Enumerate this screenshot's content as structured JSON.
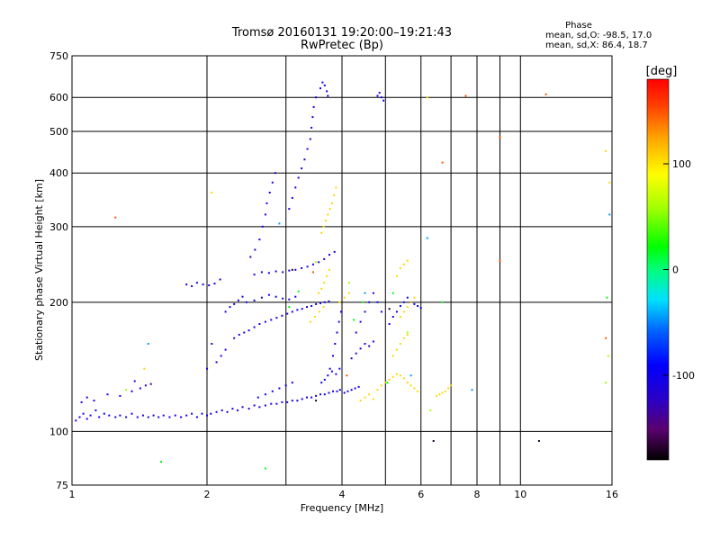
{
  "chart_data": {
    "type": "scatter",
    "title": "Tromsø 20160131 19:20:00–19:21:43",
    "subtitle": "RwPretec (Bp)",
    "xlabel": "Frequency [MHz]",
    "ylabel": "Stationary phase Virtual Height [km]",
    "x_scale": "log",
    "y_scale": "log",
    "xlim": [
      1,
      16
    ],
    "ylim": [
      75,
      750
    ],
    "grid": true,
    "x_ticks": [
      {
        "value": 1,
        "label": "1"
      },
      {
        "value": 2,
        "label": "2"
      },
      {
        "value": 4,
        "label": "4"
      },
      {
        "value": 6,
        "label": "6"
      },
      {
        "value": 8,
        "label": "8"
      },
      {
        "value": 10,
        "label": "10"
      },
      {
        "value": 16,
        "label": "16"
      }
    ],
    "x_minor": [
      3,
      5,
      7,
      9
    ],
    "y_ticks": [
      {
        "value": 75,
        "label": "75"
      },
      {
        "value": 100,
        "label": "100"
      },
      {
        "value": 200,
        "label": "200"
      },
      {
        "value": 300,
        "label": "300"
      },
      {
        "value": 400,
        "label": "400"
      },
      {
        "value": 500,
        "label": "500"
      },
      {
        "value": 600,
        "label": "600"
      },
      {
        "value": 750,
        "label": "750"
      }
    ],
    "stats": {
      "heading": "Phase",
      "line1": "mean, sd,O: -98.5, 17.0",
      "line2": "mean, sd,X:  86.4, 18.7"
    },
    "colorbar": {
      "label": "[deg]",
      "range": [
        -180,
        180
      ],
      "ticks": [
        {
          "value": 100,
          "label": "100"
        },
        {
          "value": 0,
          "label": "0"
        },
        {
          "value": -100,
          "label": "-100"
        }
      ]
    },
    "series": [
      {
        "phase": -105,
        "points": [
          [
            1.02,
            106
          ],
          [
            1.04,
            108
          ],
          [
            1.06,
            110
          ],
          [
            1.08,
            107
          ],
          [
            1.1,
            109
          ],
          [
            1.13,
            112
          ],
          [
            1.15,
            108
          ],
          [
            1.18,
            110
          ],
          [
            1.21,
            109
          ],
          [
            1.25,
            108
          ],
          [
            1.28,
            109
          ],
          [
            1.32,
            108
          ],
          [
            1.36,
            110
          ],
          [
            1.4,
            108
          ],
          [
            1.44,
            109
          ],
          [
            1.48,
            108
          ],
          [
            1.52,
            109
          ],
          [
            1.56,
            108
          ],
          [
            1.6,
            109
          ],
          [
            1.65,
            108
          ],
          [
            1.7,
            109
          ],
          [
            1.75,
            108
          ],
          [
            1.8,
            109
          ],
          [
            1.85,
            110
          ],
          [
            1.9,
            108
          ],
          [
            1.95,
            110
          ],
          [
            2.0,
            109
          ],
          [
            1.05,
            117
          ],
          [
            1.08,
            120
          ],
          [
            1.12,
            118
          ],
          [
            1.2,
            122
          ],
          [
            1.28,
            121
          ],
          [
            1.36,
            124
          ],
          [
            1.42,
            126
          ],
          [
            1.46,
            128
          ],
          [
            1.38,
            131
          ],
          [
            1.5,
            129
          ],
          [
            2.04,
            110
          ],
          [
            2.1,
            111
          ],
          [
            2.16,
            112
          ],
          [
            2.22,
            111
          ],
          [
            2.28,
            113
          ],
          [
            2.34,
            112
          ],
          [
            2.4,
            114
          ],
          [
            2.48,
            113
          ],
          [
            2.55,
            115
          ],
          [
            2.62,
            114
          ],
          [
            2.7,
            115
          ],
          [
            2.78,
            116
          ],
          [
            2.86,
            116
          ],
          [
            2.94,
            117
          ],
          [
            3.02,
            117
          ],
          [
            3.1,
            118
          ],
          [
            3.18,
            118
          ],
          [
            3.26,
            119
          ],
          [
            3.34,
            120
          ],
          [
            3.42,
            120
          ],
          [
            3.5,
            121
          ],
          [
            3.58,
            122
          ],
          [
            3.66,
            122
          ],
          [
            3.74,
            123
          ],
          [
            3.82,
            124
          ],
          [
            3.9,
            124
          ],
          [
            3.96,
            125
          ],
          [
            3.6,
            130
          ],
          [
            3.66,
            132
          ],
          [
            3.72,
            135
          ],
          [
            3.8,
            138
          ],
          [
            3.88,
            136
          ],
          [
            3.95,
            140
          ],
          [
            2.3,
            165
          ],
          [
            2.36,
            168
          ],
          [
            2.42,
            170
          ],
          [
            2.48,
            172
          ],
          [
            2.55,
            175
          ],
          [
            2.62,
            178
          ],
          [
            2.7,
            180
          ],
          [
            2.78,
            182
          ],
          [
            2.86,
            184
          ],
          [
            2.94,
            186
          ],
          [
            3.02,
            188
          ],
          [
            3.1,
            190
          ],
          [
            3.18,
            192
          ],
          [
            3.26,
            193
          ],
          [
            3.34,
            195
          ],
          [
            3.42,
            196
          ],
          [
            3.5,
            198
          ],
          [
            3.58,
            199
          ],
          [
            3.66,
            200
          ],
          [
            3.74,
            201
          ],
          [
            2.45,
            200
          ],
          [
            2.55,
            202
          ],
          [
            2.65,
            205
          ],
          [
            2.75,
            208
          ],
          [
            2.85,
            206
          ],
          [
            2.95,
            204
          ],
          [
            3.05,
            203
          ],
          [
            3.15,
            206
          ],
          [
            2.55,
            232
          ],
          [
            2.65,
            235
          ],
          [
            2.75,
            234
          ],
          [
            2.85,
            236
          ],
          [
            2.95,
            235
          ],
          [
            3.05,
            237
          ],
          [
            3.15,
            238
          ],
          [
            3.25,
            240
          ],
          [
            3.35,
            242
          ],
          [
            3.45,
            245
          ],
          [
            3.55,
            248
          ],
          [
            3.65,
            252
          ],
          [
            3.75,
            258
          ],
          [
            3.85,
            262
          ],
          [
            1.8,
            220
          ],
          [
            1.85,
            218
          ],
          [
            1.9,
            222
          ],
          [
            1.96,
            220
          ],
          [
            2.02,
            219
          ],
          [
            2.08,
            221
          ],
          [
            2.14,
            226
          ],
          [
            2.5,
            255
          ],
          [
            2.56,
            265
          ],
          [
            2.62,
            280
          ],
          [
            2.66,
            300
          ],
          [
            2.7,
            320
          ],
          [
            2.72,
            340
          ],
          [
            2.76,
            360
          ],
          [
            2.8,
            380
          ],
          [
            2.84,
            400
          ],
          [
            3.05,
            330
          ],
          [
            3.1,
            350
          ],
          [
            3.15,
            370
          ],
          [
            3.2,
            390
          ],
          [
            3.25,
            410
          ],
          [
            3.3,
            430
          ],
          [
            3.35,
            455
          ],
          [
            3.4,
            480
          ],
          [
            3.42,
            510
          ],
          [
            3.44,
            540
          ],
          [
            3.46,
            570
          ],
          [
            3.5,
            600
          ],
          [
            3.58,
            630
          ],
          [
            3.62,
            650
          ],
          [
            3.66,
            640
          ],
          [
            3.7,
            620
          ],
          [
            3.72,
            605
          ],
          [
            4.2,
            148
          ],
          [
            4.3,
            152
          ],
          [
            4.4,
            156
          ],
          [
            4.5,
            160
          ],
          [
            4.6,
            158
          ],
          [
            4.7,
            162
          ],
          [
            4.3,
            170
          ],
          [
            4.4,
            180
          ],
          [
            4.5,
            190
          ],
          [
            4.6,
            200
          ],
          [
            4.7,
            210
          ],
          [
            4.8,
            200
          ],
          [
            4.9,
            190
          ],
          [
            4.8,
            605
          ],
          [
            4.85,
            615
          ],
          [
            4.9,
            600
          ],
          [
            4.95,
            590
          ],
          [
            2.1,
            145
          ],
          [
            2.15,
            150
          ],
          [
            2.2,
            155
          ],
          [
            2.05,
            160
          ],
          [
            2.0,
            140
          ],
          [
            4.05,
            123
          ],
          [
            4.12,
            124
          ],
          [
            4.2,
            125
          ],
          [
            4.28,
            126
          ],
          [
            4.36,
            127
          ],
          [
            5.1,
            178
          ],
          [
            5.2,
            185
          ],
          [
            5.3,
            190
          ],
          [
            5.4,
            196
          ],
          [
            5.5,
            200
          ],
          [
            5.6,
            205
          ],
          [
            5.7,
            200
          ],
          [
            5.8,
            198
          ],
          [
            5.9,
            196
          ],
          [
            6.0,
            194
          ],
          [
            3.76,
            140
          ],
          [
            3.82,
            150
          ],
          [
            3.86,
            160
          ],
          [
            3.9,
            170
          ],
          [
            3.94,
            180
          ],
          [
            3.98,
            190
          ],
          [
            2.6,
            120
          ],
          [
            2.7,
            122
          ],
          [
            2.8,
            124
          ],
          [
            2.9,
            126
          ],
          [
            3.0,
            128
          ],
          [
            3.1,
            130
          ],
          [
            2.2,
            190
          ],
          [
            2.25,
            195
          ],
          [
            2.3,
            198
          ],
          [
            2.35,
            202
          ],
          [
            2.4,
            206
          ]
        ]
      },
      {
        "phase": 105,
        "points": [
          [
            3.6,
            290
          ],
          [
            3.64,
            300
          ],
          [
            3.68,
            310
          ],
          [
            3.72,
            320
          ],
          [
            3.76,
            330
          ],
          [
            3.8,
            340
          ],
          [
            3.84,
            355
          ],
          [
            3.88,
            370
          ],
          [
            3.55,
            210
          ],
          [
            3.6,
            215
          ],
          [
            3.65,
            222
          ],
          [
            3.7,
            230
          ],
          [
            3.75,
            238
          ],
          [
            4.8,
            125
          ],
          [
            4.9,
            128
          ],
          [
            5.0,
            130
          ],
          [
            5.1,
            132
          ],
          [
            5.2,
            134
          ],
          [
            5.3,
            136
          ],
          [
            5.4,
            135
          ],
          [
            5.5,
            133
          ],
          [
            5.6,
            130
          ],
          [
            5.7,
            128
          ],
          [
            5.8,
            126
          ],
          [
            5.9,
            124
          ],
          [
            6.5,
            121
          ],
          [
            6.6,
            122
          ],
          [
            6.7,
            123
          ],
          [
            6.8,
            124
          ],
          [
            6.9,
            126
          ],
          [
            7.0,
            128
          ],
          [
            5.2,
            150
          ],
          [
            5.3,
            155
          ],
          [
            5.4,
            160
          ],
          [
            5.5,
            165
          ],
          [
            5.6,
            168
          ],
          [
            5.4,
            185
          ],
          [
            5.5,
            190
          ],
          [
            5.6,
            195
          ],
          [
            5.7,
            200
          ],
          [
            5.8,
            205
          ],
          [
            5.3,
            230
          ],
          [
            5.4,
            240
          ],
          [
            5.5,
            245
          ],
          [
            5.6,
            250
          ],
          [
            3.4,
            180
          ],
          [
            3.48,
            185
          ],
          [
            3.56,
            190
          ],
          [
            3.64,
            195
          ],
          [
            3.95,
            200
          ],
          [
            4.05,
            205
          ],
          [
            4.15,
            210
          ],
          [
            4.4,
            118
          ],
          [
            4.5,
            120
          ],
          [
            4.6,
            122
          ],
          [
            4.7,
            119
          ],
          [
            1.45,
            140
          ],
          [
            2.05,
            360
          ],
          [
            6.2,
            600
          ],
          [
            15.5,
            450
          ],
          [
            15.8,
            380
          ]
        ]
      },
      {
        "phase": 20,
        "points": [
          [
            1.58,
            85
          ],
          [
            2.7,
            82
          ],
          [
            3.05,
            195
          ],
          [
            3.2,
            212
          ],
          [
            4.25,
            182
          ],
          [
            4.45,
            200
          ],
          [
            5.05,
            130
          ],
          [
            5.2,
            210
          ],
          [
            6.7,
            200
          ],
          [
            15.6,
            205
          ]
        ]
      },
      {
        "phase": 60,
        "points": [
          [
            1.32,
            125
          ],
          [
            3.5,
            248
          ],
          [
            4.15,
            222
          ],
          [
            5.6,
            170
          ],
          [
            6.3,
            112
          ],
          [
            15.5,
            130
          ],
          [
            15.7,
            150
          ]
        ]
      },
      {
        "phase": 150,
        "points": [
          [
            1.25,
            315
          ],
          [
            3.45,
            235
          ],
          [
            4.1,
            135
          ],
          [
            6.7,
            423
          ],
          [
            7.55,
            605
          ],
          [
            9.0,
            250
          ],
          [
            9.0,
            485
          ],
          [
            11.4,
            610
          ],
          [
            15.5,
            165
          ]
        ]
      },
      {
        "phase": -170,
        "points": [
          [
            3.1,
            238
          ],
          [
            3.5,
            118
          ],
          [
            5.1,
            193
          ],
          [
            6.4,
            95
          ],
          [
            11.0,
            95
          ]
        ]
      },
      {
        "phase": -45,
        "points": [
          [
            1.48,
            160
          ],
          [
            2.9,
            305
          ],
          [
            4.5,
            210
          ],
          [
            5.7,
            135
          ],
          [
            6.2,
            282
          ],
          [
            7.8,
            125
          ],
          [
            15.8,
            320
          ]
        ]
      }
    ]
  }
}
